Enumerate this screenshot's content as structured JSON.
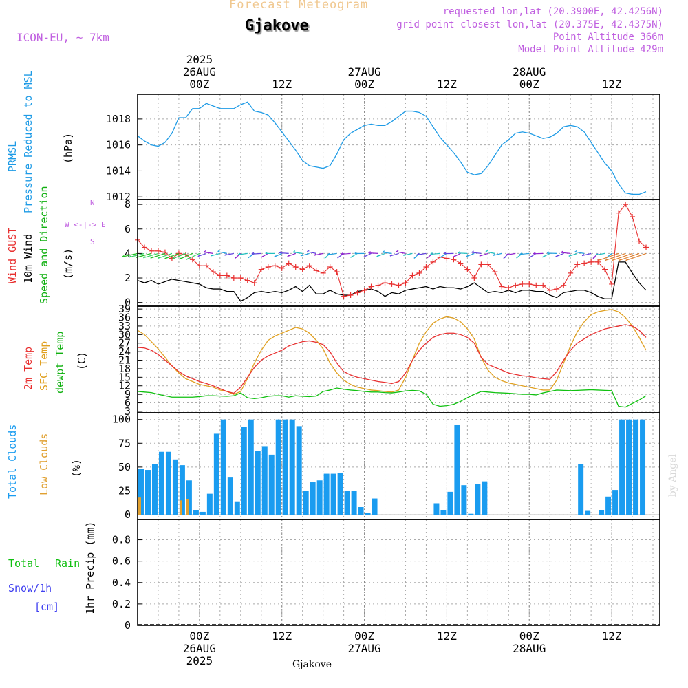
{
  "header": {
    "product": "Forecast Meteogram",
    "station": "Gjakove",
    "model": "ICON-EU, ~ 7km",
    "requested": "requested lon,lat (20.3900E, 42.4256N)",
    "gridpoint": "grid point closest lon,lat (20.375E, 42.4375N)",
    "point_altitude": "Point Altitude 366m",
    "model_altitude": "Model Point Altitude 429m",
    "footer_station": "Gjakove",
    "credit": "by Angel"
  },
  "time_axis": {
    "year": "2025",
    "top_ticks": [
      {
        "hour": 9,
        "line1": "26AUG",
        "line2": "00Z"
      },
      {
        "hour": 21,
        "line1": "",
        "line2": "12Z"
      },
      {
        "hour": 33,
        "line1": "27AUG",
        "line2": "00Z"
      },
      {
        "hour": 45,
        "line1": "",
        "line2": "12Z"
      },
      {
        "hour": 57,
        "line1": "28AUG",
        "line2": "00Z"
      },
      {
        "hour": 69,
        "line1": "",
        "line2": "12Z"
      }
    ],
    "bottom_ticks": [
      {
        "hour": 9,
        "line1": "00Z",
        "line2": "26AUG"
      },
      {
        "hour": 21,
        "line1": "12Z",
        "line2": ""
      },
      {
        "hour": 33,
        "line1": "00Z",
        "line2": "27AUG"
      },
      {
        "hour": 45,
        "line1": "12Z",
        "line2": ""
      },
      {
        "hour": 57,
        "line1": "00Z",
        "line2": "28AUG"
      },
      {
        "hour": 69,
        "line1": "12Z",
        "line2": ""
      }
    ],
    "hour_range": [
      0,
      76
    ],
    "minor_every_hours": 3
  },
  "panel_labels": {
    "pressure": {
      "l1": "PRMSL",
      "l2": "Pressure Reduced to MSL",
      "unit": "(hPa)"
    },
    "wind": {
      "l1": "Wind GUST",
      "l2": "10m Wind",
      "l3": "Speed and Direction",
      "unit": "(m/s)",
      "compass_n": "N",
      "compass_s": "S",
      "compass_row": "W <-|-> E"
    },
    "temp": {
      "l1": "2m Temp",
      "l2": "SFC Temp",
      "l3": "dewpt Temp",
      "unit": "(C)"
    },
    "clouds": {
      "l1": "Total Clouds",
      "l2": "Low Clouds",
      "unit": "(%)"
    },
    "precip": {
      "l1": "Total",
      "l1b": "Rain",
      "l2": "Snow/1h",
      "l3": "[cm]",
      "unit": "1hr Precip (mm)"
    }
  },
  "colors": {
    "pressure": "#1e9be6",
    "gust": "#e83030",
    "wind": "#000000",
    "two_m": "#e83030",
    "sfc": "#e0a020",
    "dewpt": "#10c010",
    "total_cloud": "#1a9cf0",
    "low_cloud": "#e0a030",
    "rain": "#10c010",
    "snow": "#4040f0",
    "title": "#f0c890",
    "meta": "#c060e0"
  },
  "chart_data": [
    {
      "type": "line",
      "name": "PRMSL",
      "ylabel": "(hPa)",
      "ylim": [
        1011.8,
        1019.9
      ],
      "yticks": [
        1012,
        1014,
        1016,
        1018
      ],
      "series": [
        {
          "name": "PRMSL",
          "values": [
            1016.7,
            1016.3,
            1016.0,
            1015.9,
            1016.2,
            1016.9,
            1018.1,
            1018.1,
            1018.8,
            1018.8,
            1019.2,
            1019.0,
            1018.8,
            1018.8,
            1018.8,
            1019.1,
            1019.3,
            1018.6,
            1018.5,
            1018.3,
            1017.7,
            1017.0,
            1016.3,
            1015.6,
            1014.8,
            1014.4,
            1014.3,
            1014.2,
            1014.4,
            1015.3,
            1016.4,
            1016.9,
            1017.2,
            1017.5,
            1017.6,
            1017.5,
            1017.5,
            1017.8,
            1018.2,
            1018.6,
            1018.6,
            1018.5,
            1018.2,
            1017.4,
            1016.6,
            1016.0,
            1015.4,
            1014.7,
            1013.9,
            1013.7,
            1013.8,
            1014.4,
            1015.2,
            1016.0,
            1016.4,
            1016.9,
            1017.0,
            1016.9,
            1016.7,
            1016.5,
            1016.6,
            1016.9,
            1017.4,
            1017.5,
            1017.4,
            1017.0,
            1016.2,
            1015.4,
            1014.6,
            1014.0,
            1013.0,
            1012.3,
            1012.2,
            1012.2,
            1012.4
          ]
        }
      ]
    },
    {
      "type": "line",
      "name": "Wind",
      "ylabel": "(m/s)",
      "ylim": [
        -0.3,
        8.4
      ],
      "yticks": [
        0,
        2,
        4,
        6,
        8
      ],
      "series": [
        {
          "name": "Wind GUST",
          "values": [
            5.1,
            4.5,
            4.2,
            4.2,
            4.1,
            3.6,
            4.0,
            3.9,
            3.5,
            3.0,
            3.0,
            2.5,
            2.2,
            2.2,
            2.0,
            2.0,
            1.8,
            1.6,
            2.7,
            2.9,
            3.0,
            2.8,
            3.2,
            2.9,
            2.7,
            3.0,
            2.6,
            2.4,
            2.9,
            2.5,
            0.5,
            0.6,
            0.8,
            1.0,
            1.3,
            1.4,
            1.6,
            1.5,
            1.4,
            1.6,
            2.2,
            2.4,
            2.9,
            3.3,
            3.7,
            3.6,
            3.5,
            3.2,
            2.7,
            2.0,
            3.1,
            3.1,
            2.5,
            1.3,
            1.2,
            1.4,
            1.5,
            1.5,
            1.4,
            1.4,
            1.0,
            1.1,
            1.4,
            2.4,
            3.1,
            3.2,
            3.3,
            3.3,
            2.7,
            1.5,
            7.3,
            8.0,
            7.0,
            5.0,
            4.5
          ]
        },
        {
          "name": "10m Wind",
          "values": [
            1.8,
            1.6,
            1.8,
            1.5,
            1.7,
            1.9,
            1.8,
            1.7,
            1.6,
            1.5,
            1.2,
            1.1,
            1.1,
            0.9,
            0.9,
            0.1,
            0.4,
            0.8,
            0.9,
            0.8,
            0.9,
            0.8,
            1.0,
            1.3,
            0.9,
            1.4,
            0.7,
            0.7,
            1.0,
            0.7,
            0.6,
            0.6,
            0.9,
            1.0,
            1.1,
            0.9,
            0.5,
            0.8,
            0.7,
            1.0,
            1.1,
            1.2,
            1.3,
            1.1,
            1.3,
            1.2,
            1.2,
            1.1,
            1.3,
            1.6,
            1.2,
            0.8,
            0.9,
            0.8,
            1.0,
            0.8,
            1.0,
            1.0,
            0.9,
            0.9,
            0.6,
            0.4,
            0.8,
            0.9,
            1.0,
            1.0,
            0.8,
            0.5,
            0.3,
            0.3,
            3.3,
            3.3,
            2.4,
            1.6,
            1.0
          ]
        }
      ]
    },
    {
      "type": "line",
      "name": "Temperature",
      "ylabel": "(C)",
      "ylim": [
        2.5,
        40
      ],
      "yticks": [
        3,
        6,
        9,
        12,
        15,
        18,
        21,
        24,
        27,
        30,
        33,
        36,
        39
      ],
      "series": [
        {
          "name": "2m Temp",
          "values": [
            25.5,
            25.3,
            24.5,
            23.0,
            21.0,
            19.0,
            17.0,
            15.5,
            14.5,
            13.5,
            12.8,
            12.0,
            11.0,
            10.0,
            9.4,
            11.5,
            15.0,
            18.5,
            21.0,
            22.5,
            23.5,
            24.5,
            26.0,
            26.8,
            27.5,
            27.8,
            27.3,
            26.5,
            24.0,
            20.0,
            17.0,
            15.8,
            15.0,
            14.5,
            14.0,
            13.5,
            13.2,
            12.8,
            13.5,
            16.5,
            21.0,
            24.5,
            27.0,
            29.0,
            30.0,
            30.5,
            30.5,
            30.0,
            29.0,
            27.0,
            22.0,
            19.5,
            18.5,
            17.5,
            16.5,
            16.0,
            15.5,
            15.3,
            14.8,
            14.5,
            14.3,
            17.0,
            21.0,
            24.5,
            27.0,
            28.5,
            30.0,
            31.0,
            32.0,
            32.5,
            33.0,
            33.5,
            33.0,
            31.5,
            29.0
          ]
        },
        {
          "name": "SFC Temp",
          "values": [
            31.5,
            30.0,
            27.5,
            25.0,
            22.0,
            19.0,
            16.5,
            14.5,
            13.5,
            12.5,
            12.0,
            11.5,
            10.5,
            10.0,
            9.0,
            10.0,
            14.5,
            20.0,
            24.5,
            28.0,
            29.5,
            30.5,
            31.5,
            32.5,
            32.0,
            30.5,
            28.0,
            25.0,
            20.0,
            16.5,
            14.0,
            12.5,
            11.5,
            11.0,
            10.5,
            10.3,
            10.0,
            9.8,
            10.5,
            15.0,
            21.0,
            27.0,
            31.0,
            34.0,
            35.5,
            36.3,
            35.8,
            34.5,
            32.0,
            28.5,
            22.0,
            17.5,
            15.0,
            13.8,
            13.0,
            12.5,
            12.0,
            11.5,
            11.0,
            10.5,
            10.5,
            14.0,
            20.0,
            26.0,
            31.0,
            34.5,
            37.0,
            38.0,
            38.5,
            38.8,
            38.0,
            36.0,
            33.0,
            29.0,
            24.5
          ]
        },
        {
          "name": "dewpt Temp",
          "values": [
            10.0,
            9.8,
            9.6,
            9.0,
            8.5,
            8.0,
            8.0,
            8.0,
            8.0,
            8.2,
            8.5,
            8.5,
            8.4,
            8.3,
            8.5,
            9.5,
            7.8,
            7.5,
            7.8,
            8.3,
            8.5,
            8.5,
            8.0,
            8.5,
            8.3,
            8.2,
            8.4,
            10.0,
            10.5,
            11.2,
            10.8,
            10.5,
            10.3,
            10.0,
            9.8,
            9.8,
            9.6,
            9.5,
            9.8,
            10.2,
            10.4,
            10.2,
            9.0,
            5.5,
            4.8,
            5.0,
            5.5,
            6.5,
            7.8,
            9.0,
            10.0,
            9.8,
            9.6,
            9.5,
            9.4,
            9.2,
            9.0,
            9.0,
            8.8,
            9.5,
            10.0,
            10.5,
            10.4,
            10.3,
            10.4,
            10.5,
            10.6,
            10.5,
            10.4,
            10.3,
            4.8,
            4.5,
            5.8,
            7.0,
            8.5
          ]
        }
      ]
    },
    {
      "type": "bar",
      "name": "Clouds",
      "ylabel": "(%)",
      "ylim": [
        -5,
        107
      ],
      "yticks": [
        0,
        25,
        50,
        75,
        100
      ],
      "series": [
        {
          "name": "Total Clouds",
          "values": [
            48,
            47,
            53,
            66,
            66,
            58,
            52,
            36,
            5,
            3,
            22,
            85,
            100,
            39,
            14,
            92,
            100,
            67,
            72,
            63,
            100,
            100,
            100,
            93,
            25,
            34,
            36,
            43,
            43,
            44,
            25,
            25,
            8,
            2,
            17,
            0,
            0,
            0,
            0,
            0,
            0,
            0,
            0,
            12,
            5,
            24,
            94,
            31,
            1,
            32,
            35,
            0,
            0,
            0,
            0,
            0,
            0,
            0,
            0,
            0,
            0,
            0,
            0,
            0,
            53,
            4,
            0,
            5,
            19,
            26,
            100,
            100,
            100,
            100
          ]
        },
        {
          "name": "Low Clouds",
          "values": [
            18,
            0,
            0,
            0,
            0,
            0,
            15,
            16,
            0,
            0,
            0,
            0,
            0,
            0,
            0,
            0,
            0,
            0,
            0,
            0,
            0,
            0,
            0,
            0,
            0,
            0,
            0,
            0,
            0,
            0,
            0,
            0,
            0,
            0,
            0,
            0,
            0,
            0,
            0,
            0,
            0,
            0,
            0,
            0,
            0,
            0,
            0,
            0,
            0,
            0,
            0,
            0,
            0,
            0,
            0,
            0,
            0,
            0,
            0,
            0,
            0,
            0,
            0,
            0,
            0,
            0,
            0,
            0,
            0,
            0,
            0,
            0,
            0,
            0
          ]
        }
      ]
    },
    {
      "type": "bar",
      "name": "Precipitation",
      "ylabel": "1hr Precip (mm)",
      "ylim": [
        0,
        0.99
      ],
      "yticks": [
        0,
        0.2,
        0.4,
        0.6,
        0.8
      ],
      "series": [
        {
          "name": "Total Rain",
          "values": []
        },
        {
          "name": "Snow/1h",
          "values": []
        }
      ]
    }
  ]
}
